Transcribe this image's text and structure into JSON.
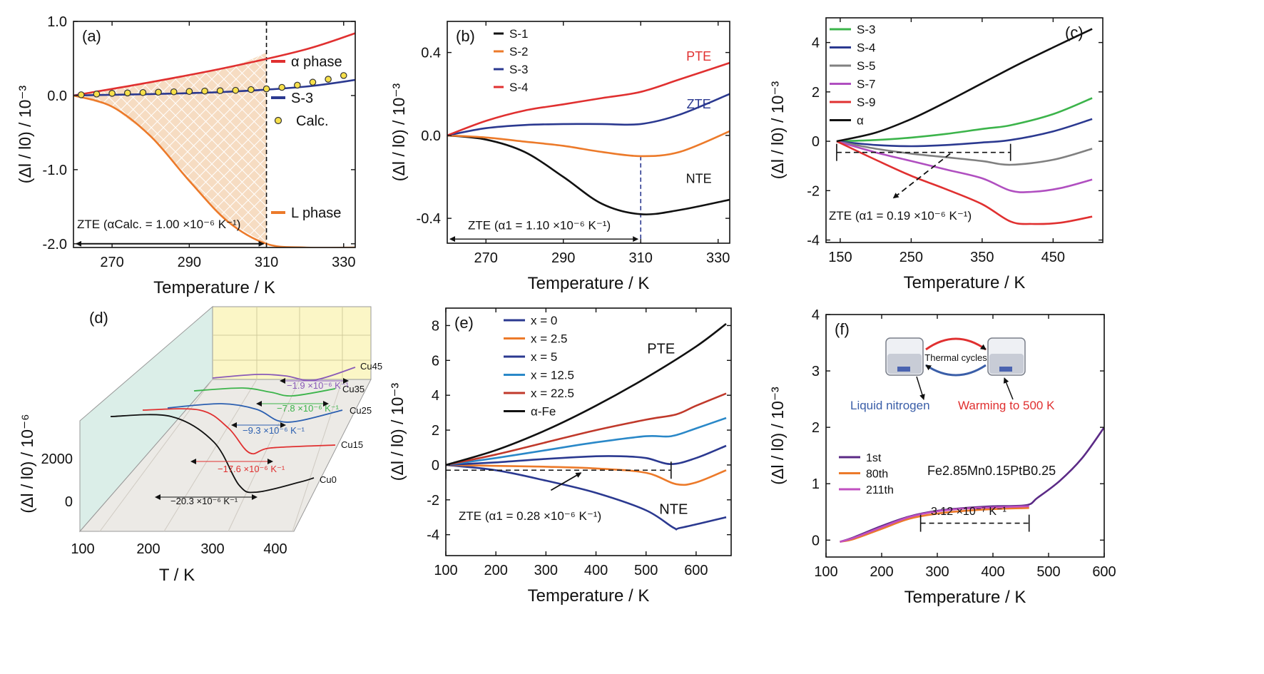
{
  "chart_data": [
    {
      "id": "a",
      "type": "line",
      "panel_label": "(a)",
      "xlabel": "Temperature / K",
      "ylabel": "(Δl / l0) / 10⁻³",
      "xlim": [
        260,
        333
      ],
      "ylim": [
        -2.05,
        1.0
      ],
      "xticks": [
        270,
        290,
        310,
        330
      ],
      "yticks": [
        -2.0,
        -1.0,
        0.0,
        1.0
      ],
      "ytick_labels": [
        "-2.0",
        "-1.0",
        "0.0",
        "1.0"
      ],
      "series": [
        {
          "name": "α phase",
          "color": "#e03030",
          "x": [
            260,
            280,
            300,
            320,
            333
          ],
          "y": [
            0,
            0.18,
            0.38,
            0.62,
            0.84
          ]
        },
        {
          "name": "S-3",
          "color": "#2b3990",
          "x": [
            260,
            280,
            300,
            320,
            333
          ],
          "y": [
            0,
            0.02,
            0.05,
            0.12,
            0.21
          ]
        },
        {
          "name": "L phase",
          "color": "#ec7a2a",
          "x": [
            260,
            270,
            280,
            290,
            300,
            310,
            320,
            333
          ],
          "y": [
            0,
            -0.15,
            -0.55,
            -1.15,
            -1.7,
            -2.0,
            -2.05,
            -2.05
          ]
        }
      ],
      "scatter": {
        "name": "Calc.",
        "color": "#f7e04a",
        "edge": "#333333",
        "x": [
          262,
          266,
          270,
          274,
          278,
          282,
          286,
          290,
          294,
          298,
          302,
          306,
          310,
          314,
          318,
          322,
          326,
          330
        ],
        "y": [
          0.01,
          0.02,
          0.03,
          0.035,
          0.04,
          0.045,
          0.05,
          0.055,
          0.06,
          0.065,
          0.07,
          0.08,
          0.09,
          0.11,
          0.14,
          0.18,
          0.22,
          0.27
        ]
      },
      "vline": 310,
      "annotation": {
        "text": "ZTE (αCalc. = 1.00 ×10⁻⁶ K⁻¹)",
        "y": -1.75,
        "arrow_y": -2.0,
        "x_range": [
          260,
          310
        ]
      }
    },
    {
      "id": "b",
      "type": "line",
      "panel_label": "(b)",
      "xlabel": "Temperature / K",
      "ylabel": "(Δl / l0) / 10⁻³",
      "xlim": [
        260,
        333
      ],
      "ylim": [
        -0.52,
        0.55
      ],
      "xticks": [
        270,
        290,
        310,
        330
      ],
      "yticks": [
        -0.4,
        0.0,
        0.4
      ],
      "ytick_labels": [
        "-0.4",
        "0.0",
        "0.4"
      ],
      "series": [
        {
          "name": "S-1",
          "color": "#111111",
          "x": [
            260,
            270,
            280,
            290,
            300,
            310,
            320,
            333
          ],
          "y": [
            0,
            -0.02,
            -0.08,
            -0.2,
            -0.33,
            -0.38,
            -0.36,
            -0.31
          ]
        },
        {
          "name": "S-2",
          "color": "#ec7a2a",
          "x": [
            260,
            270,
            280,
            290,
            300,
            310,
            320,
            333
          ],
          "y": [
            0,
            -0.01,
            -0.03,
            -0.05,
            -0.08,
            -0.1,
            -0.08,
            0.02
          ]
        },
        {
          "name": "S-3",
          "color": "#2b3990",
          "x": [
            260,
            270,
            280,
            290,
            300,
            310,
            320,
            333
          ],
          "y": [
            0,
            0.035,
            0.05,
            0.055,
            0.055,
            0.055,
            0.1,
            0.2
          ]
        },
        {
          "name": "S-4",
          "color": "#e03030",
          "x": [
            260,
            270,
            280,
            290,
            300,
            310,
            320,
            333
          ],
          "y": [
            0,
            0.07,
            0.12,
            0.15,
            0.18,
            0.21,
            0.27,
            0.35
          ]
        }
      ],
      "labels": [
        {
          "text": "PTE",
          "x": 325,
          "y": 0.36,
          "color": "#e03030"
        },
        {
          "text": "ZTE",
          "x": 325,
          "y": 0.13,
          "color": "#2b3990"
        },
        {
          "text": "NTE",
          "x": 325,
          "y": -0.23,
          "color": "#111111"
        }
      ],
      "vline": 310,
      "annotation": {
        "text": "ZTE (α1 = 1.10 ×10⁻⁶ K⁻¹)",
        "y": -0.44,
        "arrow_y": -0.5,
        "x_range": [
          260,
          310
        ]
      }
    },
    {
      "id": "c",
      "type": "line",
      "panel_label": "(c)",
      "xlabel": "Temperature / K",
      "ylabel": "(Δl / l0) / 10⁻³",
      "xlim": [
        130,
        520
      ],
      "ylim": [
        -4.1,
        5.0
      ],
      "xticks": [
        150,
        250,
        350,
        450
      ],
      "yticks": [
        -4,
        -2,
        0,
        2,
        4
      ],
      "ytick_labels": [
        "-4",
        "-2",
        "0",
        "2",
        "4"
      ],
      "series": [
        {
          "name": "S-3",
          "color": "#3cb44b",
          "x": [
            145,
            200,
            250,
            300,
            350,
            390,
            450,
            505
          ],
          "y": [
            0,
            0.05,
            0.15,
            0.3,
            0.5,
            0.65,
            1.1,
            1.75
          ]
        },
        {
          "name": "S-4",
          "color": "#2b3990",
          "x": [
            145,
            200,
            250,
            300,
            350,
            390,
            450,
            505
          ],
          "y": [
            0,
            -0.15,
            -0.2,
            -0.15,
            -0.05,
            0.05,
            0.4,
            0.9
          ]
        },
        {
          "name": "S-5",
          "color": "#808080",
          "x": [
            145,
            200,
            250,
            300,
            350,
            390,
            450,
            505
          ],
          "y": [
            0,
            -0.3,
            -0.5,
            -0.65,
            -0.8,
            -0.95,
            -0.75,
            -0.3
          ]
        },
        {
          "name": "S-7",
          "color": "#b04fc0",
          "x": [
            145,
            200,
            250,
            300,
            350,
            390,
            420,
            460,
            505
          ],
          "y": [
            0,
            -0.45,
            -0.8,
            -1.15,
            -1.5,
            -2.0,
            -2.05,
            -1.9,
            -1.55
          ]
        },
        {
          "name": "S-9",
          "color": "#e03030",
          "x": [
            145,
            200,
            250,
            300,
            350,
            390,
            420,
            460,
            505
          ],
          "y": [
            0,
            -0.75,
            -1.4,
            -1.95,
            -2.55,
            -3.25,
            -3.35,
            -3.3,
            -3.05
          ]
        },
        {
          "name": "α",
          "color": "#111111",
          "x": [
            145,
            200,
            250,
            300,
            350,
            400,
            450,
            505
          ],
          "y": [
            0,
            0.35,
            0.9,
            1.6,
            2.35,
            3.1,
            3.8,
            4.55
          ]
        }
      ],
      "dashed_segment": {
        "x_range": [
          145,
          390
        ],
        "y": -0.45
      },
      "arrow": {
        "from": [
          305,
          -0.5
        ],
        "to": [
          225,
          -2.3
        ]
      },
      "annotation": {
        "text": "ZTE (α1 = 0.19 ×10⁻⁶ K⁻¹)",
        "y": -3.0
      }
    },
    {
      "id": "d",
      "type": "line",
      "panel_label": "(d)",
      "xlabel": "T / K",
      "ylabel": "(Δl / l0) / 10⁻⁶",
      "xticks": [
        100,
        200,
        300,
        400
      ],
      "yticks": [
        0,
        2000
      ],
      "ytick_labels": [
        "0",
        "2000"
      ],
      "series": [
        {
          "name": "Cu0",
          "color": "#111111",
          "annotation": "−20.3 ×10⁻⁶ K⁻¹"
        },
        {
          "name": "Cu15",
          "color": "#e03030",
          "annotation": "−17.6 ×10⁻⁶ K⁻¹"
        },
        {
          "name": "Cu25",
          "color": "#2b5fb0",
          "annotation": "−9.3 ×10⁻⁶ K⁻¹"
        },
        {
          "name": "Cu35",
          "color": "#3cb44b",
          "annotation": "−7.8 ×10⁻⁶ K⁻¹"
        },
        {
          "name": "Cu45",
          "color": "#8a5bb8",
          "annotation": "−1.9 ×10⁻⁶ K⁻¹"
        }
      ]
    },
    {
      "id": "e",
      "type": "line",
      "panel_label": "(e)",
      "xlabel": "Temperature / K",
      "ylabel": "(Δl / l0) / 10⁻³",
      "xlim": [
        100,
        670
      ],
      "ylim": [
        -5.2,
        9.0
      ],
      "xticks": [
        100,
        200,
        300,
        400,
        500,
        600
      ],
      "yticks": [
        -4,
        -2,
        0,
        2,
        4,
        6,
        8
      ],
      "ytick_labels": [
        "-4",
        "-2",
        "0",
        "2",
        "4",
        "6",
        "8"
      ],
      "series": [
        {
          "name": "x = 0",
          "color": "#2b3990",
          "x": [
            100,
            200,
            300,
            400,
            500,
            555,
            570,
            660
          ],
          "y": [
            0,
            -0.3,
            -0.9,
            -1.6,
            -2.6,
            -3.6,
            -3.6,
            -3.0
          ]
        },
        {
          "name": "x = 2.5",
          "color": "#ec7a2a",
          "x": [
            100,
            200,
            300,
            400,
            500,
            560,
            600,
            660
          ],
          "y": [
            0,
            -0.05,
            -0.1,
            -0.2,
            -0.45,
            -1.1,
            -1.0,
            -0.3
          ]
        },
        {
          "name": "x = 5",
          "color": "#2b3990",
          "x": [
            100,
            200,
            300,
            400,
            450,
            500,
            550,
            600,
            660
          ],
          "y": [
            0,
            0.15,
            0.35,
            0.5,
            0.5,
            0.4,
            0.05,
            0.4,
            1.1
          ]
        },
        {
          "name": "x = 12.5",
          "color": "#2a88c8",
          "x": [
            100,
            200,
            300,
            400,
            500,
            550,
            600,
            660
          ],
          "y": [
            0,
            0.4,
            0.85,
            1.3,
            1.65,
            1.65,
            2.1,
            2.7
          ]
        },
        {
          "name": "x = 22.5",
          "color": "#c0392b",
          "x": [
            100,
            200,
            300,
            400,
            500,
            560,
            600,
            660
          ],
          "y": [
            0,
            0.6,
            1.3,
            2.0,
            2.6,
            2.9,
            3.4,
            4.1
          ]
        },
        {
          "name": "α-Fe",
          "color": "#111111",
          "x": [
            100,
            200,
            300,
            400,
            500,
            600,
            660
          ],
          "y": [
            0,
            0.85,
            2.0,
            3.4,
            5.0,
            6.8,
            8.1
          ]
        }
      ],
      "labels": [
        {
          "text": "PTE",
          "x": 530,
          "y": 6.4,
          "color": "#111111"
        },
        {
          "text": "NTE",
          "x": 555,
          "y": -2.8,
          "color": "#111111"
        }
      ],
      "dashed_segment": {
        "x_range": [
          100,
          550
        ],
        "y": -0.3
      },
      "arrow": {
        "from": [
          310,
          -1.45
        ],
        "to": [
          370,
          -0.45
        ]
      },
      "annotation": {
        "text": "ZTE (α1 = 0.28 ×10⁻⁶ K⁻¹)",
        "y": -2.9
      }
    },
    {
      "id": "f",
      "type": "line",
      "panel_label": "(f)",
      "xlabel": "Temperature / K",
      "ylabel": "(Δl / l0) / 10⁻³",
      "xlim": [
        100,
        600
      ],
      "ylim": [
        -0.3,
        4.0
      ],
      "xticks": [
        100,
        200,
        300,
        400,
        500,
        600
      ],
      "yticks": [
        0,
        1,
        2,
        3,
        4
      ],
      "ytick_labels": [
        "0",
        "1",
        "2",
        "3",
        "4"
      ],
      "series": [
        {
          "name": "1st",
          "color": "#5b2a86",
          "x": [
            125,
            150,
            200,
            250,
            300,
            350,
            400,
            460,
            480,
            520,
            560,
            600
          ],
          "y": [
            -0.03,
            0.05,
            0.25,
            0.42,
            0.52,
            0.57,
            0.6,
            0.62,
            0.75,
            1.05,
            1.45,
            2.0
          ]
        },
        {
          "name": "80th",
          "color": "#ec7a2a",
          "x": [
            125,
            150,
            200,
            250,
            300,
            350,
            400,
            465
          ],
          "y": [
            -0.03,
            0.02,
            0.2,
            0.38,
            0.47,
            0.52,
            0.55,
            0.57
          ]
        },
        {
          "name": "211th",
          "color": "#c050c0",
          "x": [
            125,
            150,
            200,
            250,
            300,
            350,
            400,
            465
          ],
          "y": [
            -0.03,
            0.04,
            0.23,
            0.41,
            0.51,
            0.56,
            0.58,
            0.6
          ]
        }
      ],
      "formula": "Fe2.85Mn0.15PtB0.25",
      "measurement": "3.12 ×10⁻⁷ K⁻¹",
      "dashed_segment": {
        "x_range": [
          270,
          465
        ],
        "y": 0.3
      },
      "inset": {
        "center": "Thermal cycles",
        "left": "Liquid nitrogen",
        "right": "Warming to 500 K",
        "left_color": "#3a5ea8",
        "right_color": "#e03030"
      }
    }
  ]
}
